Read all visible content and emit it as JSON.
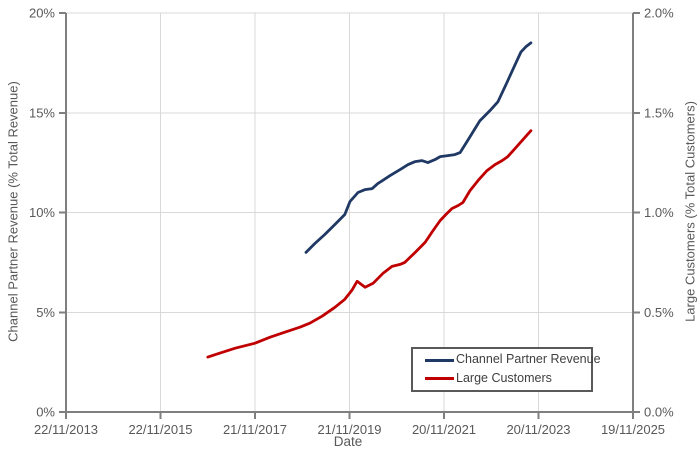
{
  "chart_data": {
    "type": "line",
    "title": "",
    "xlabel": "Date",
    "ylabel_left": "Channel Partner Revenue (% Total Revenue)",
    "ylabel_right": "Large Customers (% Total Customers)",
    "grid": true,
    "legend_position": "inside-bottom-center",
    "x_axis": {
      "tick_labels": [
        "22/11/2013",
        "22/11/2015",
        "21/11/2017",
        "21/11/2019",
        "20/11/2021",
        "20/11/2023",
        "19/11/2025"
      ],
      "tick_positions_years": [
        0,
        2,
        4,
        6,
        8,
        10,
        12
      ],
      "range_years": [
        0,
        12
      ]
    },
    "y_axis_left": {
      "min": 0,
      "max": 20,
      "ticks": [
        0,
        5,
        10,
        15,
        20
      ],
      "tick_labels": [
        "0%",
        "5%",
        "10%",
        "15%",
        "20%"
      ]
    },
    "y_axis_right": {
      "min": 0,
      "max": 2,
      "ticks": [
        0,
        0.5,
        1.0,
        1.5,
        2.0
      ],
      "tick_labels": [
        "0.0%",
        "0.5%",
        "1.0%",
        "1.5%",
        "2.0%"
      ]
    },
    "series": [
      {
        "name": "Channel Partner Revenue",
        "axis": "left",
        "color": "#1f3864",
        "points": [
          [
            5.08,
            8.0
          ],
          [
            5.27,
            8.45
          ],
          [
            5.48,
            8.9
          ],
          [
            5.69,
            9.4
          ],
          [
            5.9,
            9.9
          ],
          [
            6.01,
            10.55
          ],
          [
            6.18,
            11.0
          ],
          [
            6.33,
            11.15
          ],
          [
            6.48,
            11.2
          ],
          [
            6.6,
            11.45
          ],
          [
            6.86,
            11.85
          ],
          [
            7.07,
            12.15
          ],
          [
            7.24,
            12.4
          ],
          [
            7.39,
            12.55
          ],
          [
            7.53,
            12.6
          ],
          [
            7.66,
            12.5
          ],
          [
            7.81,
            12.65
          ],
          [
            7.92,
            12.8
          ],
          [
            8.08,
            12.85
          ],
          [
            8.23,
            12.9
          ],
          [
            8.34,
            13.0
          ],
          [
            8.55,
            13.8
          ],
          [
            8.76,
            14.6
          ],
          [
            8.97,
            15.1
          ],
          [
            9.14,
            15.55
          ],
          [
            9.33,
            16.5
          ],
          [
            9.54,
            17.6
          ],
          [
            9.63,
            18.05
          ],
          [
            9.73,
            18.3
          ],
          [
            9.84,
            18.5
          ]
        ]
      },
      {
        "name": "Large Customers",
        "axis": "right",
        "color": "#c00000",
        "points": [
          [
            3.0,
            0.275
          ],
          [
            3.26,
            0.295
          ],
          [
            3.58,
            0.32
          ],
          [
            4.0,
            0.345
          ],
          [
            4.32,
            0.375
          ],
          [
            4.63,
            0.4
          ],
          [
            4.95,
            0.425
          ],
          [
            5.16,
            0.445
          ],
          [
            5.42,
            0.48
          ],
          [
            5.69,
            0.525
          ],
          [
            5.9,
            0.565
          ],
          [
            6.05,
            0.61
          ],
          [
            6.16,
            0.655
          ],
          [
            6.33,
            0.625
          ],
          [
            6.5,
            0.645
          ],
          [
            6.71,
            0.695
          ],
          [
            6.9,
            0.73
          ],
          [
            7.07,
            0.74
          ],
          [
            7.17,
            0.75
          ],
          [
            7.39,
            0.8
          ],
          [
            7.6,
            0.85
          ],
          [
            7.77,
            0.91
          ],
          [
            7.92,
            0.96
          ],
          [
            8.04,
            0.99
          ],
          [
            8.17,
            1.02
          ],
          [
            8.3,
            1.035
          ],
          [
            8.4,
            1.05
          ],
          [
            8.55,
            1.11
          ],
          [
            8.72,
            1.16
          ],
          [
            8.91,
            1.21
          ],
          [
            9.08,
            1.24
          ],
          [
            9.23,
            1.26
          ],
          [
            9.35,
            1.28
          ],
          [
            9.5,
            1.32
          ],
          [
            9.65,
            1.36
          ],
          [
            9.84,
            1.41
          ]
        ]
      }
    ]
  },
  "colors": {
    "series_navy": "#1f3864",
    "series_red": "#c00000",
    "gridline": "#d9d9d9",
    "axis_line": "#7f7f7f",
    "tick_label": "#595959",
    "legend_text": "#404040",
    "background": "#ffffff"
  }
}
